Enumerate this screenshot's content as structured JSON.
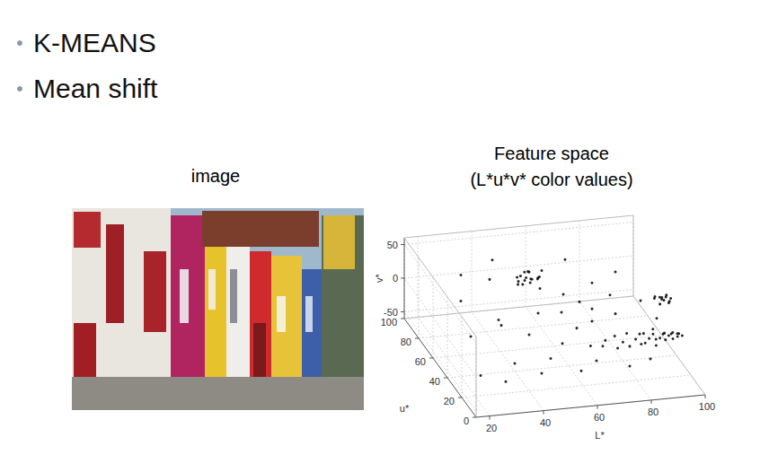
{
  "slide": {
    "bullets": [
      "K-MEANS",
      "Mean shift"
    ]
  },
  "image": {
    "caption": "image"
  },
  "chart_data": {
    "type": "scatter3d",
    "title": "Feature space",
    "subtitle": "(L*u*v* color values)",
    "x_label": "L*",
    "y_label": "u*",
    "z_label": "v*",
    "xlim": [
      15,
      100
    ],
    "xticks": [
      20,
      40,
      60,
      80,
      100
    ],
    "ylim": [
      0,
      100
    ],
    "yticks": [
      0,
      20,
      40,
      60,
      80,
      100
    ],
    "zlim": [
      -60,
      60
    ],
    "zticks": [
      -50,
      0,
      50
    ],
    "grid": true,
    "color": "#000000",
    "marker": "dot",
    "points": [
      [
        70,
        30,
        -20
      ],
      [
        72,
        34,
        -18
      ],
      [
        75,
        28,
        -22
      ],
      [
        76,
        36,
        -16
      ],
      [
        78,
        32,
        -20
      ],
      [
        80,
        30,
        -24
      ],
      [
        81,
        38,
        -17
      ],
      [
        83,
        33,
        -19
      ],
      [
        84,
        29,
        -21
      ],
      [
        85,
        35,
        -15
      ],
      [
        86,
        31,
        -23
      ],
      [
        87,
        37,
        -18
      ],
      [
        88,
        33,
        -20
      ],
      [
        89,
        27,
        -22
      ],
      [
        90,
        35,
        -17
      ],
      [
        90,
        31,
        -19
      ],
      [
        91,
        39,
        -16
      ],
      [
        92,
        33,
        -21
      ],
      [
        93,
        29,
        -18
      ],
      [
        94,
        36,
        -20
      ],
      [
        95,
        32,
        -17
      ],
      [
        95,
        38,
        -22
      ],
      [
        96,
        30,
        -19
      ],
      [
        97,
        34,
        -16
      ],
      [
        97,
        36,
        -21
      ],
      [
        98,
        31,
        -18
      ],
      [
        99,
        35,
        -20
      ],
      [
        99,
        33,
        -17
      ],
      [
        100,
        32,
        -19
      ],
      [
        66,
        32,
        -21
      ],
      [
        46,
        58,
        40
      ],
      [
        48,
        62,
        46
      ],
      [
        49,
        60,
        42
      ],
      [
        50,
        56,
        44
      ],
      [
        50,
        64,
        48
      ],
      [
        51,
        59,
        45
      ],
      [
        52,
        61,
        41
      ],
      [
        53,
        57,
        47
      ],
      [
        47,
        63,
        43
      ],
      [
        54,
        60,
        44
      ],
      [
        49,
        58,
        49
      ],
      [
        52,
        65,
        46
      ],
      [
        55,
        62,
        42
      ],
      [
        48,
        59,
        38
      ],
      [
        51,
        63,
        50
      ],
      [
        96,
        48,
        6
      ],
      [
        97,
        52,
        10
      ],
      [
        98,
        50,
        8
      ],
      [
        99,
        46,
        12
      ],
      [
        100,
        54,
        9
      ],
      [
        97,
        49,
        14
      ],
      [
        98,
        53,
        5
      ],
      [
        99,
        51,
        11
      ],
      [
        95,
        52,
        9
      ],
      [
        100,
        48,
        13
      ],
      [
        96,
        55,
        7
      ],
      [
        99,
        47,
        8
      ],
      [
        22,
        20,
        -30
      ],
      [
        25,
        45,
        -10
      ],
      [
        28,
        70,
        5
      ],
      [
        30,
        15,
        -35
      ],
      [
        32,
        85,
        20
      ],
      [
        35,
        40,
        10
      ],
      [
        36,
        25,
        -25
      ],
      [
        38,
        55,
        -5
      ],
      [
        40,
        75,
        25
      ],
      [
        42,
        10,
        -20
      ],
      [
        44,
        35,
        0
      ],
      [
        45,
        90,
        30
      ],
      [
        48,
        20,
        -15
      ],
      [
        50,
        45,
        15
      ],
      [
        52,
        80,
        10
      ],
      [
        55,
        30,
        -10
      ],
      [
        56,
        65,
        20
      ],
      [
        58,
        15,
        -30
      ],
      [
        60,
        50,
        5
      ],
      [
        62,
        85,
        15
      ],
      [
        63,
        40,
        -5
      ],
      [
        65,
        20,
        -25
      ],
      [
        66,
        70,
        0
      ],
      [
        68,
        55,
        10
      ],
      [
        70,
        45,
        -5
      ],
      [
        72,
        90,
        20
      ],
      [
        74,
        60,
        -10
      ],
      [
        76,
        15,
        -30
      ],
      [
        78,
        75,
        5
      ],
      [
        80,
        50,
        -5
      ],
      [
        82,
        65,
        0
      ],
      [
        85,
        20,
        -30
      ],
      [
        88,
        80,
        10
      ],
      [
        92,
        60,
        -5
      ],
      [
        94,
        45,
        -10
      ]
    ]
  }
}
